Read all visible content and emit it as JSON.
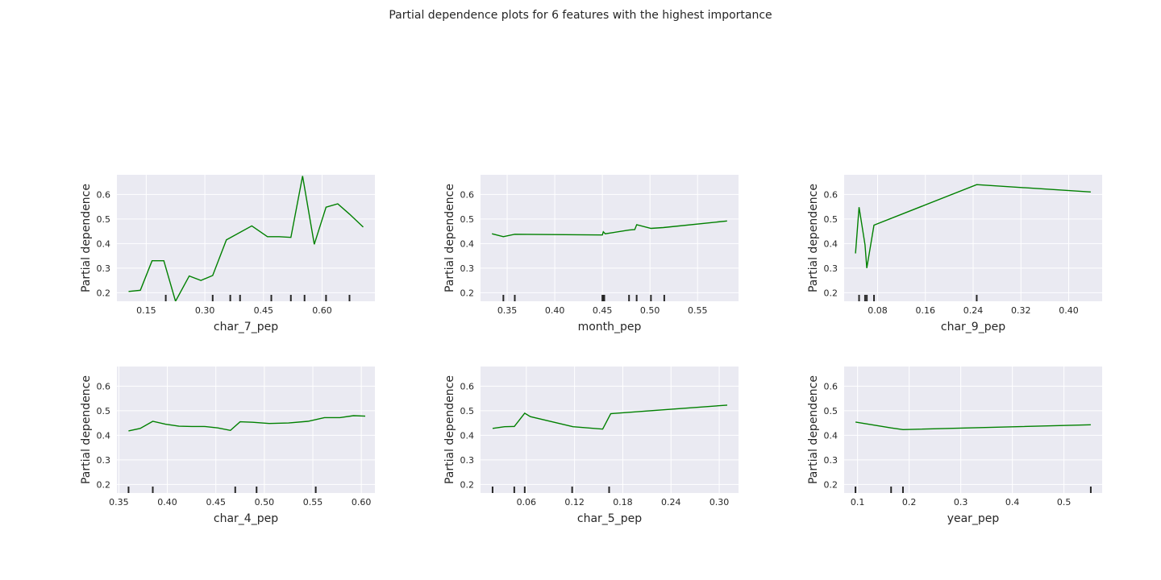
{
  "title": "Partial dependence plots for 6 features with the highest importance",
  "colors": {
    "panel_bg": "#eaeaf2",
    "grid": "#ffffff",
    "line": "#008000",
    "rug": "#262626",
    "text": "#262626"
  },
  "chart_data": [
    {
      "type": "line",
      "xlabel": "char_7_pep",
      "ylabel": "Partial dependence",
      "xlim": [
        0.075,
        0.735
      ],
      "ylim": [
        0.165,
        0.68
      ],
      "xticks": [
        0.15,
        0.3,
        0.45,
        0.6
      ],
      "xtick_labels": [
        "0.15",
        "0.30",
        "0.45",
        "0.60"
      ],
      "yticks": [
        0.2,
        0.3,
        0.4,
        0.5,
        0.6
      ],
      "ytick_labels": [
        "0.2",
        "0.3",
        "0.4",
        "0.5",
        "0.6"
      ],
      "x": [
        0.105,
        0.135,
        0.165,
        0.195,
        0.225,
        0.26,
        0.29,
        0.32,
        0.355,
        0.42,
        0.46,
        0.49,
        0.52,
        0.55,
        0.58,
        0.61,
        0.64,
        0.67,
        0.705
      ],
      "y": [
        0.205,
        0.21,
        0.33,
        0.33,
        0.165,
        0.268,
        0.25,
        0.27,
        0.415,
        0.472,
        0.428,
        0.428,
        0.425,
        0.675,
        0.397,
        0.548,
        0.562,
        0.52,
        0.467
      ],
      "rug": [
        0.2,
        0.32,
        0.365,
        0.39,
        0.47,
        0.52,
        0.555,
        0.61,
        0.67
      ]
    },
    {
      "type": "line",
      "xlabel": "month_pep",
      "ylabel": "Partial dependence",
      "xlim": [
        0.322,
        0.593
      ],
      "ylim": [
        0.165,
        0.68
      ],
      "xticks": [
        0.35,
        0.4,
        0.45,
        0.5,
        0.55
      ],
      "xtick_labels": [
        "0.35",
        "0.40",
        "0.45",
        "0.50",
        "0.55"
      ],
      "yticks": [
        0.2,
        0.3,
        0.4,
        0.5,
        0.6
      ],
      "ytick_labels": [
        "0.2",
        "0.3",
        "0.4",
        "0.5",
        "0.6"
      ],
      "x": [
        0.334,
        0.346,
        0.358,
        0.45,
        0.451,
        0.453,
        0.478,
        0.484,
        0.486,
        0.501,
        0.514,
        0.581
      ],
      "y": [
        0.44,
        0.428,
        0.438,
        0.435,
        0.448,
        0.44,
        0.455,
        0.457,
        0.477,
        0.462,
        0.465,
        0.492
      ],
      "rug": [
        0.346,
        0.358,
        0.45,
        0.451,
        0.452,
        0.478,
        0.486,
        0.501,
        0.515
      ]
    },
    {
      "type": "line",
      "xlabel": "char_9_pep",
      "ylabel": "Partial dependence",
      "xlim": [
        0.024,
        0.456
      ],
      "ylim": [
        0.165,
        0.68
      ],
      "xticks": [
        0.08,
        0.16,
        0.24,
        0.32,
        0.4
      ],
      "xtick_labels": [
        "0.08",
        "0.16",
        "0.24",
        "0.32",
        "0.40"
      ],
      "yticks": [
        0.2,
        0.3,
        0.4,
        0.5,
        0.6
      ],
      "ytick_labels": [
        "0.2",
        "0.3",
        "0.4",
        "0.5",
        "0.6"
      ],
      "x": [
        0.043,
        0.049,
        0.059,
        0.062,
        0.074,
        0.246,
        0.437
      ],
      "y": [
        0.36,
        0.548,
        0.395,
        0.3,
        0.475,
        0.64,
        0.61
      ],
      "rug": [
        0.049,
        0.059,
        0.062,
        0.074,
        0.246
      ]
    },
    {
      "type": "line",
      "xlabel": "char_4_pep",
      "ylabel": "Partial dependence",
      "xlim": [
        0.348,
        0.614
      ],
      "ylim": [
        0.165,
        0.68
      ],
      "xticks": [
        0.35,
        0.4,
        0.45,
        0.5,
        0.55,
        0.6
      ],
      "xtick_labels": [
        "0.35",
        "0.40",
        "0.45",
        "0.50",
        "0.55",
        "0.60"
      ],
      "yticks": [
        0.2,
        0.3,
        0.4,
        0.5,
        0.6
      ],
      "ytick_labels": [
        "0.2",
        "0.3",
        "0.4",
        "0.5",
        "0.6"
      ],
      "x": [
        0.36,
        0.372,
        0.385,
        0.398,
        0.412,
        0.425,
        0.438,
        0.452,
        0.465,
        0.475,
        0.488,
        0.505,
        0.525,
        0.545,
        0.562,
        0.578,
        0.592,
        0.604
      ],
      "y": [
        0.418,
        0.428,
        0.457,
        0.445,
        0.437,
        0.436,
        0.436,
        0.43,
        0.42,
        0.455,
        0.453,
        0.448,
        0.45,
        0.457,
        0.472,
        0.472,
        0.48,
        0.478
      ],
      "rug": [
        0.36,
        0.385,
        0.47,
        0.492,
        0.553
      ]
    },
    {
      "type": "line",
      "xlabel": "char_5_pep",
      "ylabel": "Partial dependence",
      "xlim": [
        0.003,
        0.324
      ],
      "ylim": [
        0.165,
        0.68
      ],
      "xticks": [
        0.06,
        0.12,
        0.18,
        0.24,
        0.3
      ],
      "xtick_labels": [
        "0.06",
        "0.12",
        "0.18",
        "0.24",
        "0.30"
      ],
      "yticks": [
        0.2,
        0.3,
        0.4,
        0.5,
        0.6
      ],
      "ytick_labels": [
        "0.2",
        "0.3",
        "0.4",
        "0.5",
        "0.6"
      ],
      "x": [
        0.018,
        0.033,
        0.045,
        0.058,
        0.065,
        0.118,
        0.155,
        0.165,
        0.31
      ],
      "y": [
        0.428,
        0.435,
        0.436,
        0.49,
        0.476,
        0.435,
        0.425,
        0.488,
        0.523
      ],
      "rug": [
        0.018,
        0.045,
        0.058,
        0.117,
        0.163
      ]
    },
    {
      "type": "line",
      "xlabel": "year_pep",
      "ylabel": "Partial dependence",
      "xlim": [
        0.074,
        0.574
      ],
      "ylim": [
        0.165,
        0.68
      ],
      "xticks": [
        0.1,
        0.2,
        0.3,
        0.4,
        0.5
      ],
      "xtick_labels": [
        "0.1",
        "0.2",
        "0.3",
        "0.4",
        "0.5"
      ],
      "yticks": [
        0.2,
        0.3,
        0.4,
        0.5,
        0.6
      ],
      "ytick_labels": [
        "0.2",
        "0.3",
        "0.4",
        "0.5",
        "0.6"
      ],
      "x": [
        0.096,
        0.165,
        0.188,
        0.552
      ],
      "y": [
        0.454,
        0.43,
        0.423,
        0.443
      ],
      "rug": [
        0.096,
        0.165,
        0.188,
        0.552
      ]
    }
  ]
}
